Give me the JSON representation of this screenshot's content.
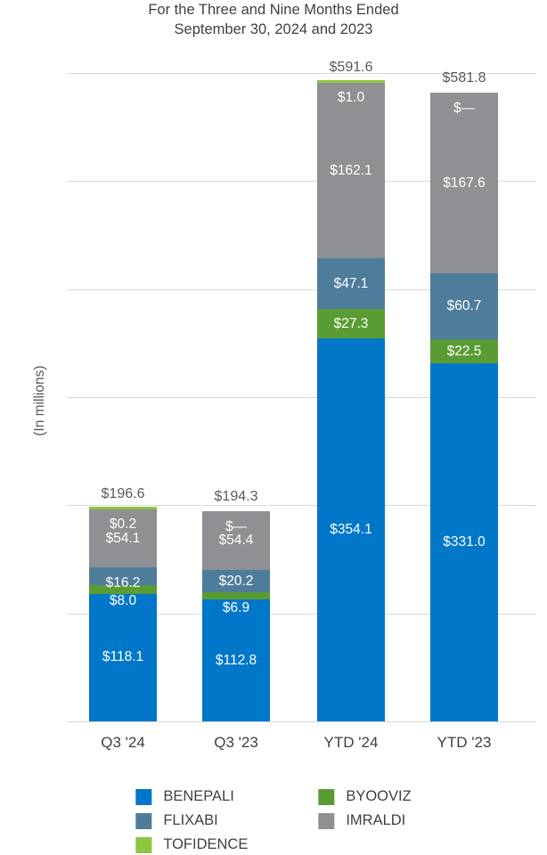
{
  "title": {
    "line1": "For the Three and Nine Months Ended",
    "line2": "September 30, 2024 and 2023"
  },
  "y_axis_label": "(In millions)",
  "chart_data": {
    "type": "bar",
    "stacked": true,
    "categories": [
      "Q3 '24",
      "Q3 '23",
      "YTD '24",
      "YTD '23"
    ],
    "series": [
      {
        "name": "BENEPALI",
        "color": "#0077C8",
        "values": [
          118.1,
          112.8,
          354.1,
          331.0
        ],
        "labels": [
          "$118.1",
          "$112.8",
          "$354.1",
          "$331.0"
        ]
      },
      {
        "name": "BYOOVIZ",
        "color": "#5A9C34",
        "values": [
          8.0,
          6.9,
          27.3,
          22.5
        ],
        "labels": [
          "$8.0",
          "$6.9",
          "$27.3",
          "$22.5"
        ]
      },
      {
        "name": "FLIXABI",
        "color": "#4E7D9C",
        "values": [
          16.2,
          20.2,
          47.1,
          60.7
        ],
        "labels": [
          "$16.2",
          "$20.2",
          "$47.1",
          "$60.7"
        ]
      },
      {
        "name": "IMRALDI",
        "color": "#8E9093",
        "values": [
          54.1,
          54.4,
          162.1,
          167.6
        ],
        "labels": [
          "$54.1",
          "$54.4",
          "$162.1",
          "$167.6"
        ]
      },
      {
        "name": "TOFIDENCE",
        "color": "#8DC63F",
        "values": [
          0.2,
          0,
          1.0,
          0
        ],
        "labels": [
          "$0.2",
          "$—",
          "$1.0",
          "$—"
        ]
      }
    ],
    "totals": [
      "$196.6",
      "$194.3",
      "$591.6",
      "$581.8"
    ],
    "ylim": [
      0,
      600
    ],
    "grid_step": 100,
    "grid": true,
    "legend_position": "bottom"
  }
}
